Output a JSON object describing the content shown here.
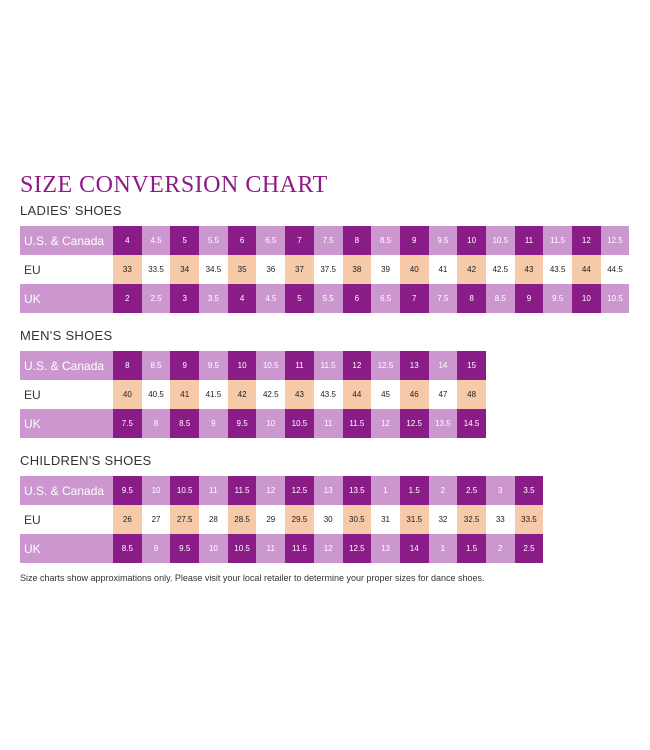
{
  "title": "SIZE CONVERSION CHART",
  "sections": [
    {
      "heading": "LADIES' SHOES",
      "rows": [
        {
          "label": "U.S. & Canada",
          "values": [
            "4",
            "4.5",
            "5",
            "5.5",
            "6",
            "6.5",
            "7",
            "7.5",
            "8",
            "8.5",
            "9",
            "9.5",
            "10",
            "10.5",
            "11",
            "11.5",
            "12",
            "12.5"
          ]
        },
        {
          "label": "EU",
          "values": [
            "33",
            "33.5",
            "34",
            "34.5",
            "35",
            "36",
            "37",
            "37.5",
            "38",
            "39",
            "40",
            "41",
            "42",
            "42.5",
            "43",
            "43.5",
            "44",
            "44.5"
          ]
        },
        {
          "label": "UK",
          "values": [
            "2",
            "2.5",
            "3",
            "3.5",
            "4",
            "4.5",
            "5",
            "5.5",
            "6",
            "6.5",
            "7",
            "7.5",
            "8",
            "8.5",
            "9",
            "9.5",
            "10",
            "10.5"
          ]
        }
      ]
    },
    {
      "heading": "MEN'S SHOES",
      "rows": [
        {
          "label": "U.S. & Canada",
          "values": [
            "8",
            "8.5",
            "9",
            "9.5",
            "10",
            "10.5",
            "11",
            "11.5",
            "12",
            "12.5",
            "13",
            "14",
            "15"
          ]
        },
        {
          "label": "EU",
          "values": [
            "40",
            "40.5",
            "41",
            "41.5",
            "42",
            "42.5",
            "43",
            "43.5",
            "44",
            "45",
            "46",
            "47",
            "48"
          ]
        },
        {
          "label": "UK",
          "values": [
            "7.5",
            "8",
            "8.5",
            "9",
            "9.5",
            "10",
            "10.5",
            "11",
            "11.5",
            "12",
            "12.5",
            "13.5",
            "14.5"
          ]
        }
      ]
    },
    {
      "heading": "CHILDREN'S SHOES",
      "rows": [
        {
          "label": "U.S. & Canada",
          "values": [
            "9.5",
            "10",
            "10.5",
            "11",
            "11.5",
            "12",
            "12.5",
            "13",
            "13.5",
            "1",
            "1.5",
            "2",
            "2.5",
            "3",
            "3.5"
          ]
        },
        {
          "label": "EU",
          "values": [
            "26",
            "27",
            "27.5",
            "28",
            "28.5",
            "29",
            "29.5",
            "30",
            "30.5",
            "31",
            "31.5",
            "32",
            "32.5",
            "33",
            "33.5"
          ]
        },
        {
          "label": "UK",
          "values": [
            "8.5",
            "9",
            "9.5",
            "10",
            "10.5",
            "11",
            "11.5",
            "12",
            "12.5",
            "13",
            "14",
            "1",
            "1.5",
            "2",
            "2.5"
          ]
        }
      ]
    }
  ],
  "footnote": "Size charts show approximations only. Please visit your local retailer to determine your proper sizes for dance shoes.",
  "colors": {
    "title": "#8e1a86",
    "dark_purple": "#8a1c88",
    "lavender": "#cc96cf",
    "peach": "#f6c9a8",
    "white": "#ffffff"
  }
}
